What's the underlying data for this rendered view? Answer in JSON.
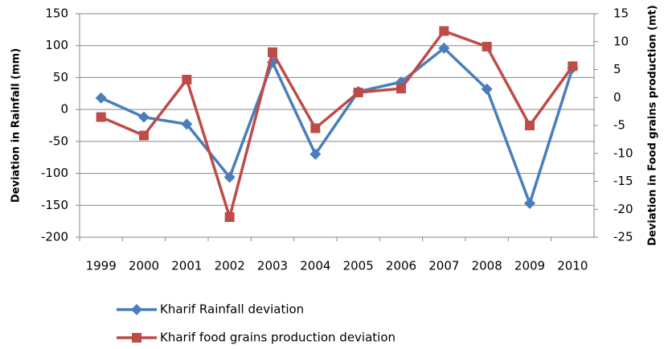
{
  "chart_data": {
    "type": "line",
    "y_label": "Deviation in Rainfall (mm)",
    "y2_label": "Deviation in Food grains production (mt)",
    "categories": [
      "1999",
      "2000",
      "2001",
      "2002",
      "2003",
      "2004",
      "2005",
      "2006",
      "2007",
      "2008",
      "2009",
      "2010"
    ],
    "series": [
      {
        "name": "Kharif Rainfall deviation",
        "color": "#4a7ebb",
        "marker": "diamond",
        "values": [
          18,
          -12,
          -23,
          -106,
          74,
          -70,
          28,
          43,
          96,
          32,
          -147,
          65
        ]
      },
      {
        "name": "Kharif food grains production deviation",
        "color": "#be4b48",
        "marker": "square",
        "axis": "y2",
        "values": [
          -3.5,
          -6.8,
          3.2,
          -21.4,
          8.1,
          -5.5,
          0.9,
          1.6,
          11.9,
          9.1,
          -5.0,
          5.6
        ]
      }
    ],
    "ylim": [
      -200,
      150
    ],
    "yticks": [
      -200,
      -150,
      -100,
      -50,
      0,
      50,
      100,
      150
    ],
    "y2lim": [
      -25,
      15
    ],
    "y2ticks": [
      -25,
      -20,
      -15,
      -10,
      -5,
      0,
      5,
      10,
      15
    ],
    "grid": true,
    "legend": "bottom"
  }
}
